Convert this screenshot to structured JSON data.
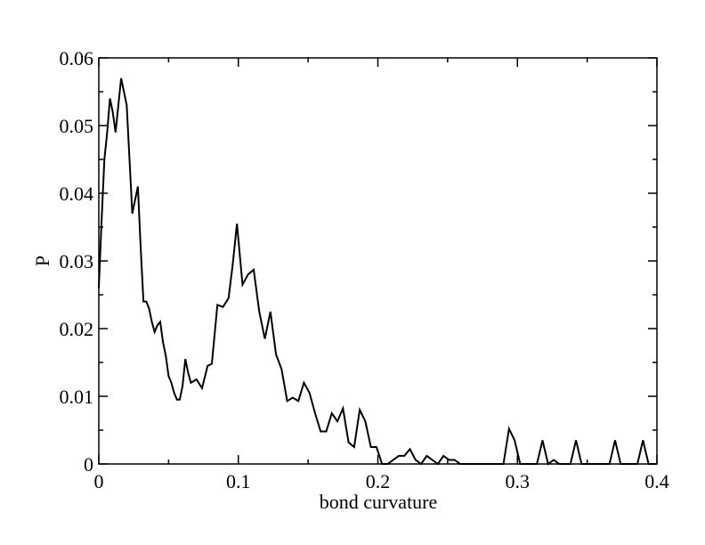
{
  "chart_data": {
    "type": "line",
    "title": "",
    "xlabel": "bond curvature",
    "ylabel": "P",
    "xlim": [
      0,
      0.4
    ],
    "ylim": [
      0,
      0.06
    ],
    "xticks": [
      0,
      0.1,
      0.2,
      0.3,
      0.4
    ],
    "xtick_labels": [
      "0",
      "0.1",
      "0.2",
      "0.3",
      "0.4"
    ],
    "yticks": [
      0,
      0.01,
      0.02,
      0.03,
      0.04,
      0.05,
      0.06
    ],
    "ytick_labels": [
      "0",
      "0.01",
      "0.02",
      "0.03",
      "0.04",
      "0.05",
      "0.06"
    ],
    "x_minor_step": 0.05,
    "y_minor_step": 0.005,
    "grid": false,
    "series": [
      {
        "color": "#000000",
        "points": [
          [
            0.0,
            0.026
          ],
          [
            0.002,
            0.036
          ],
          [
            0.004,
            0.045
          ],
          [
            0.006,
            0.049
          ],
          [
            0.008,
            0.054
          ],
          [
            0.01,
            0.052
          ],
          [
            0.012,
            0.049
          ],
          [
            0.014,
            0.053
          ],
          [
            0.016,
            0.057
          ],
          [
            0.018,
            0.055
          ],
          [
            0.02,
            0.053
          ],
          [
            0.022,
            0.045
          ],
          [
            0.024,
            0.037
          ],
          [
            0.026,
            0.039
          ],
          [
            0.028,
            0.041
          ],
          [
            0.03,
            0.032
          ],
          [
            0.032,
            0.024
          ],
          [
            0.034,
            0.024
          ],
          [
            0.036,
            0.023
          ],
          [
            0.038,
            0.021
          ],
          [
            0.04,
            0.0195
          ],
          [
            0.042,
            0.0205
          ],
          [
            0.044,
            0.021
          ],
          [
            0.046,
            0.018
          ],
          [
            0.048,
            0.016
          ],
          [
            0.05,
            0.013
          ],
          [
            0.052,
            0.012
          ],
          [
            0.054,
            0.0105
          ],
          [
            0.056,
            0.0095
          ],
          [
            0.058,
            0.0095
          ],
          [
            0.06,
            0.0115
          ],
          [
            0.062,
            0.0155
          ],
          [
            0.064,
            0.0135
          ],
          [
            0.066,
            0.012
          ],
          [
            0.07,
            0.0125
          ],
          [
            0.074,
            0.0112
          ],
          [
            0.078,
            0.0145
          ],
          [
            0.081,
            0.0148
          ],
          [
            0.085,
            0.0235
          ],
          [
            0.089,
            0.0232
          ],
          [
            0.093,
            0.0245
          ],
          [
            0.096,
            0.0295
          ],
          [
            0.099,
            0.0355
          ],
          [
            0.103,
            0.0265
          ],
          [
            0.107,
            0.028
          ],
          [
            0.111,
            0.0287
          ],
          [
            0.115,
            0.0225
          ],
          [
            0.119,
            0.0185
          ],
          [
            0.123,
            0.0225
          ],
          [
            0.127,
            0.0162
          ],
          [
            0.131,
            0.014
          ],
          [
            0.135,
            0.0093
          ],
          [
            0.139,
            0.0098
          ],
          [
            0.143,
            0.0093
          ],
          [
            0.147,
            0.012
          ],
          [
            0.151,
            0.0105
          ],
          [
            0.155,
            0.0075
          ],
          [
            0.159,
            0.0048
          ],
          [
            0.163,
            0.0048
          ],
          [
            0.167,
            0.0075
          ],
          [
            0.171,
            0.0063
          ],
          [
            0.175,
            0.0082
          ],
          [
            0.179,
            0.0032
          ],
          [
            0.183,
            0.0025
          ],
          [
            0.187,
            0.008
          ],
          [
            0.191,
            0.0063
          ],
          [
            0.195,
            0.0025
          ],
          [
            0.199,
            0.0025
          ],
          [
            0.203,
            0.0
          ],
          [
            0.207,
            0.0
          ],
          [
            0.211,
            0.0006
          ],
          [
            0.215,
            0.0012
          ],
          [
            0.219,
            0.0012
          ],
          [
            0.223,
            0.0022
          ],
          [
            0.227,
            0.0006
          ],
          [
            0.231,
            0.0
          ],
          [
            0.235,
            0.0012
          ],
          [
            0.239,
            0.0006
          ],
          [
            0.243,
            0.0
          ],
          [
            0.247,
            0.0012
          ],
          [
            0.251,
            0.0006
          ],
          [
            0.255,
            0.0006
          ],
          [
            0.259,
            0.0
          ],
          [
            0.29,
            0.0
          ],
          [
            0.294,
            0.0052
          ],
          [
            0.298,
            0.0035
          ],
          [
            0.302,
            0.0
          ],
          [
            0.314,
            0.0
          ],
          [
            0.318,
            0.0035
          ],
          [
            0.322,
            0.0
          ],
          [
            0.326,
            0.0006
          ],
          [
            0.33,
            0.0
          ],
          [
            0.338,
            0.0
          ],
          [
            0.342,
            0.0035
          ],
          [
            0.346,
            0.0
          ],
          [
            0.366,
            0.0
          ],
          [
            0.37,
            0.0035
          ],
          [
            0.374,
            0.0
          ],
          [
            0.386,
            0.0
          ],
          [
            0.39,
            0.0035
          ],
          [
            0.394,
            0.0
          ],
          [
            0.4,
            0.0
          ]
        ]
      }
    ]
  }
}
